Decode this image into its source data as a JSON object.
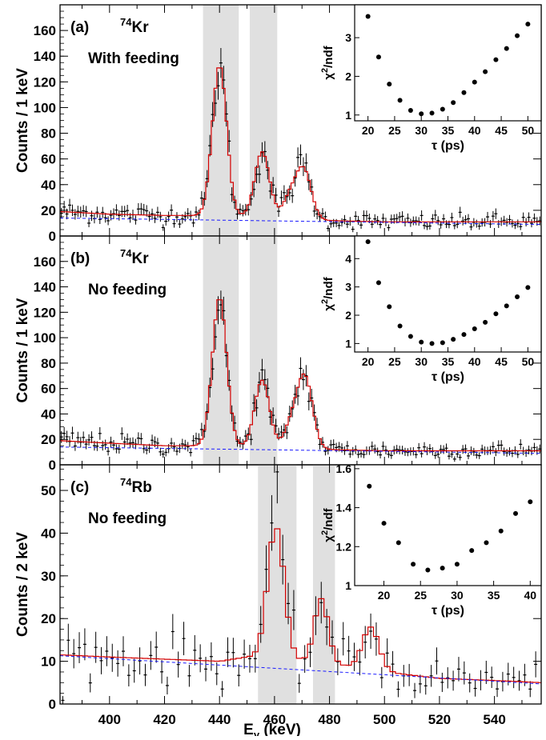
{
  "figure": {
    "xlabel_main": "E",
    "xlabel_sub": "γ",
    "xlabel_unit": " (keV)",
    "accent_colors": {
      "fit": "#d40000",
      "background_line": "#1a1aff",
      "gate": "#e0e0e0"
    }
  },
  "chart_data": [
    {
      "type": "line",
      "panel": "(a)",
      "nucleus_mass": "74",
      "nucleus_symbol": "Kr",
      "subtitle": "With feeding",
      "ylabel": "Counts / 1 keV",
      "xlim": [
        382,
        557
      ],
      "ylim": [
        0,
        180
      ],
      "yticks": [
        0,
        20,
        40,
        60,
        80,
        100,
        120,
        140,
        160
      ],
      "gates": [
        [
          434,
          447
        ],
        [
          451,
          461
        ]
      ],
      "background": {
        "x": [
          382,
          557
        ],
        "y": [
          14,
          9
        ]
      },
      "fit": {
        "base": [
          [
            382,
            19
          ],
          [
            400,
            17
          ],
          [
            420,
            16
          ],
          [
            430,
            16
          ],
          [
            440,
            16
          ],
          [
            450,
            15
          ],
          [
            460,
            14
          ],
          [
            470,
            13
          ],
          [
            480,
            12
          ],
          [
            500,
            11
          ],
          [
            520,
            11
          ],
          [
            540,
            11
          ],
          [
            557,
            11
          ]
        ],
        "peaks": [
          {
            "center": 440,
            "sigma": 2.6,
            "height": 117
          },
          {
            "center": 455.5,
            "sigma": 2.7,
            "height": 51
          },
          {
            "center": 470.5,
            "sigma": 2.8,
            "height": 39
          },
          {
            "center": 465.5,
            "sigma": 2.5,
            "height": 15
          }
        ]
      },
      "inset": {
        "xlabel": "τ (ps)",
        "ylabel_main": "χ",
        "ylabel_sup": "2",
        "ylabel_rest": "/ndf",
        "xlim": [
          17.5,
          52.5
        ],
        "ylim": [
          0.85,
          3.85
        ],
        "xticks": [
          20,
          25,
          30,
          35,
          40,
          45,
          50
        ],
        "yticks": [
          1,
          2,
          3
        ],
        "x": [
          20,
          22,
          24,
          26,
          28,
          30,
          32,
          34,
          36,
          38,
          40,
          42,
          44,
          46,
          48,
          50
        ],
        "y": [
          3.55,
          2.5,
          1.8,
          1.38,
          1.12,
          1.03,
          1.05,
          1.15,
          1.32,
          1.58,
          1.85,
          2.12,
          2.43,
          2.72,
          3.05,
          3.35
        ]
      }
    },
    {
      "type": "line",
      "panel": "(b)",
      "nucleus_mass": "74",
      "nucleus_symbol": "Kr",
      "subtitle": "No feeding",
      "ylabel": "Counts / 1 keV",
      "xlim": [
        382,
        557
      ],
      "ylim": [
        0,
        180
      ],
      "yticks": [
        0,
        20,
        40,
        60,
        80,
        100,
        120,
        140,
        160
      ],
      "gates": [
        [
          434,
          447
        ],
        [
          451,
          461
        ]
      ],
      "background": {
        "x": [
          382,
          557
        ],
        "y": [
          14,
          9
        ]
      },
      "fit": {
        "base": [
          [
            382,
            19
          ],
          [
            400,
            17
          ],
          [
            420,
            15
          ],
          [
            430,
            15
          ],
          [
            440,
            15
          ],
          [
            450,
            14
          ],
          [
            460,
            13
          ],
          [
            470,
            13
          ],
          [
            480,
            12
          ],
          [
            500,
            11
          ],
          [
            520,
            11
          ],
          [
            540,
            11
          ],
          [
            557,
            11
          ]
        ],
        "peaks": [
          {
            "center": 440,
            "sigma": 2.6,
            "height": 117
          },
          {
            "center": 455.5,
            "sigma": 2.7,
            "height": 53
          },
          {
            "center": 471,
            "sigma": 2.8,
            "height": 56
          },
          {
            "center": 466,
            "sigma": 2.5,
            "height": 17
          }
        ]
      },
      "inset": {
        "xlabel": "τ (ps)",
        "ylabel_main": "χ",
        "ylabel_sup": "2",
        "ylabel_rest": "/ndf",
        "xlim": [
          17.5,
          52.5
        ],
        "ylim": [
          0.7,
          4.8
        ],
        "xticks": [
          20,
          25,
          30,
          35,
          40,
          45,
          50
        ],
        "yticks": [
          1,
          2,
          3,
          4
        ],
        "x": [
          20,
          22,
          24,
          26,
          28,
          30,
          32,
          34,
          36,
          38,
          40,
          42,
          44,
          46,
          48,
          50
        ],
        "y": [
          4.6,
          3.15,
          2.3,
          1.62,
          1.25,
          1.05,
          1.0,
          1.03,
          1.15,
          1.32,
          1.52,
          1.75,
          2.05,
          2.33,
          2.65,
          2.98
        ]
      }
    },
    {
      "type": "line",
      "panel": "(c)",
      "nucleus_mass": "74",
      "nucleus_symbol": "Rb",
      "subtitle": "No feeding",
      "ylabel": "Counts / 2 keV",
      "xlim": [
        382,
        557
      ],
      "ylim": [
        0,
        56
      ],
      "yticks": [
        0,
        10,
        20,
        30,
        40,
        50
      ],
      "gates": [
        [
          454,
          468
        ],
        [
          474,
          482
        ]
      ],
      "background": {
        "x": [
          382,
          557
        ],
        "y": [
          11.3,
          4.7
        ]
      },
      "fit": {
        "base": [
          [
            382,
            11.5
          ],
          [
            400,
            11
          ],
          [
            420,
            10.5
          ],
          [
            440,
            10
          ],
          [
            450,
            11
          ],
          [
            460,
            10.5
          ],
          [
            470,
            10
          ],
          [
            480,
            9.5
          ],
          [
            490,
            8.5
          ],
          [
            500,
            7.5
          ],
          [
            520,
            6
          ],
          [
            540,
            5.5
          ],
          [
            557,
            5
          ]
        ],
        "peaks": [
          {
            "center": 460.5,
            "sigma": 3.0,
            "height": 31
          },
          {
            "center": 477,
            "sigma": 2.5,
            "height": 15
          },
          {
            "center": 495,
            "sigma": 3.0,
            "height": 10
          }
        ]
      },
      "inset": {
        "xlabel": "τ (ps)",
        "ylabel_main": "χ",
        "ylabel_sup": "2",
        "ylabel_rest": "/ndf",
        "xlim": [
          16,
          41.5
        ],
        "ylim": [
          1.0,
          1.62
        ],
        "xticks": [
          20,
          25,
          30,
          35,
          40
        ],
        "yticks": [
          1,
          1.2,
          1.4,
          1.6
        ],
        "ytick_labels": [
          "1",
          "1.2",
          "1.4",
          "1.6"
        ],
        "x": [
          18,
          20,
          22,
          24,
          26,
          28,
          30,
          32,
          34,
          36,
          38,
          40
        ],
        "y": [
          1.51,
          1.32,
          1.22,
          1.11,
          1.08,
          1.09,
          1.11,
          1.18,
          1.22,
          1.28,
          1.37,
          1.43
        ]
      }
    }
  ]
}
